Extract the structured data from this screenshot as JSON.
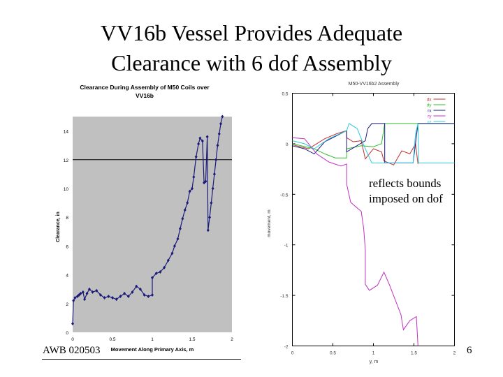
{
  "slide": {
    "title_line1": "VV16b Vessel Provides Adequate",
    "title_line2": "Clearance with 6 dof Assembly",
    "footer": "AWB 020503",
    "page_number": "6",
    "annotation_line1": "reflects bounds",
    "annotation_line2": "imposed on dof"
  },
  "chart_data": [
    {
      "type": "line",
      "title": "Clearance During Assembly of M50 Coils over VV16b",
      "title_line1": "Clearance During Assembly of M50 Coils over",
      "title_line2": "VV16b",
      "xlabel": "Movement Along Primary Axis, m",
      "ylabel": "Clearance, in",
      "xlim": [
        0,
        2
      ],
      "ylim": [
        0,
        15
      ],
      "xticks": [
        "0",
        "0.5",
        "1",
        "1.5",
        "2"
      ],
      "yticks": [
        "0",
        "2",
        "4",
        "6",
        "8",
        "10",
        "12",
        "14"
      ],
      "plot_background": "#c0c0c0",
      "reference_line_y": 12,
      "series": [
        {
          "color": "#1a1a7a",
          "marker": "diamond",
          "points": [
            [
              0,
              0.6
            ],
            [
              0.01,
              2.2
            ],
            [
              0.03,
              2.4
            ],
            [
              0.06,
              2.5
            ],
            [
              0.08,
              2.6
            ],
            [
              0.1,
              2.7
            ],
            [
              0.13,
              2.8
            ],
            [
              0.15,
              2.3
            ],
            [
              0.18,
              2.7
            ],
            [
              0.21,
              3.0
            ],
            [
              0.25,
              2.8
            ],
            [
              0.3,
              2.9
            ],
            [
              0.35,
              2.6
            ],
            [
              0.4,
              2.4
            ],
            [
              0.45,
              2.5
            ],
            [
              0.5,
              2.4
            ],
            [
              0.55,
              2.3
            ],
            [
              0.6,
              2.5
            ],
            [
              0.65,
              2.7
            ],
            [
              0.7,
              2.5
            ],
            [
              0.75,
              2.8
            ],
            [
              0.8,
              3.2
            ],
            [
              0.85,
              3.0
            ],
            [
              0.9,
              2.6
            ],
            [
              0.95,
              2.5
            ],
            [
              1.0,
              2.6
            ],
            [
              1.0,
              3.8
            ],
            [
              1.05,
              4.1
            ],
            [
              1.1,
              4.2
            ],
            [
              1.15,
              4.5
            ],
            [
              1.2,
              5.0
            ],
            [
              1.25,
              5.5
            ],
            [
              1.28,
              6.0
            ],
            [
              1.32,
              6.5
            ],
            [
              1.35,
              7.2
            ],
            [
              1.38,
              7.9
            ],
            [
              1.41,
              8.5
            ],
            [
              1.44,
              9.0
            ],
            [
              1.47,
              9.8
            ],
            [
              1.5,
              10.0
            ],
            [
              1.52,
              10.8
            ],
            [
              1.55,
              12.2
            ],
            [
              1.58,
              13.1
            ],
            [
              1.6,
              13.5
            ],
            [
              1.63,
              13.3
            ],
            [
              1.65,
              10.4
            ],
            [
              1.67,
              10.5
            ],
            [
              1.69,
              13.6
            ],
            [
              1.7,
              7.1
            ],
            [
              1.72,
              8.0
            ],
            [
              1.74,
              9.0
            ],
            [
              1.76,
              10.0
            ],
            [
              1.78,
              11.0
            ],
            [
              1.8,
              12.0
            ],
            [
              1.82,
              13.0
            ],
            [
              1.84,
              13.8
            ],
            [
              1.86,
              14.5
            ],
            [
              1.88,
              15.0
            ]
          ]
        }
      ]
    },
    {
      "type": "line",
      "title": "M50-VV16b2 Assembly",
      "xlabel": "y, m",
      "ylabel": "movement, m",
      "xlim": [
        0,
        2
      ],
      "ylim": [
        -2,
        0.5
      ],
      "xticks": [
        "0",
        "0.5",
        "1",
        "1.5",
        "2"
      ],
      "yticks": [
        "0.5",
        "0",
        "-0.5",
        "-1",
        "-1.5",
        "-2"
      ],
      "legend_position": "top-right",
      "series": [
        {
          "name": "dx",
          "color": "#c03030",
          "points": [
            [
              0,
              -0.01
            ],
            [
              0.2,
              -0.05
            ],
            [
              0.4,
              0.05
            ],
            [
              0.55,
              0.1
            ],
            [
              0.67,
              0.13
            ],
            [
              0.67,
              0.06
            ],
            [
              0.75,
              0.02
            ],
            [
              0.85,
              0.03
            ],
            [
              0.9,
              -0.15
            ],
            [
              1.0,
              -0.05
            ],
            [
              1.1,
              -0.08
            ],
            [
              1.13,
              -0.17
            ],
            [
              1.25,
              -0.21
            ],
            [
              1.35,
              -0.07
            ],
            [
              1.45,
              -0.1
            ],
            [
              1.52,
              0.0
            ],
            [
              1.55,
              -0.2
            ]
          ]
        },
        {
          "name": "dy",
          "color": "#30c030",
          "points": [
            [
              0,
              0.0
            ],
            [
              0.27,
              -0.05
            ],
            [
              0.4,
              -0.1
            ],
            [
              0.53,
              -0.14
            ],
            [
              0.67,
              -0.14
            ],
            [
              0.67,
              -0.05
            ],
            [
              0.85,
              -0.02
            ],
            [
              1.0,
              -0.03
            ],
            [
              1.1,
              0.0
            ],
            [
              1.14,
              0.2
            ],
            [
              2.0,
              0.2
            ]
          ]
        },
        {
          "name": "rx",
          "color": "#1a1a80",
          "points": [
            [
              0,
              -0.02
            ],
            [
              0.15,
              -0.05
            ],
            [
              0.27,
              -0.1
            ],
            [
              0.4,
              0.02
            ],
            [
              0.67,
              0.13
            ],
            [
              0.67,
              -0.08
            ],
            [
              0.9,
              0.03
            ],
            [
              0.93,
              0.15
            ],
            [
              0.98,
              0.2
            ],
            [
              1.14,
              0.2
            ],
            [
              1.14,
              -0.19
            ],
            [
              1.49,
              -0.19
            ],
            [
              1.55,
              0.2
            ],
            [
              2.0,
              0.2
            ]
          ]
        },
        {
          "name": "ry",
          "color": "#c030c0",
          "points": [
            [
              0,
              0.06
            ],
            [
              0.15,
              0.05
            ],
            [
              0.3,
              -0.1
            ],
            [
              0.45,
              -0.18
            ],
            [
              0.6,
              -0.22
            ],
            [
              0.67,
              -0.2
            ],
            [
              0.67,
              -0.4
            ],
            [
              0.72,
              -0.58
            ],
            [
              0.85,
              -0.67
            ],
            [
              0.88,
              -0.84
            ],
            [
              0.9,
              -1.05
            ],
            [
              0.9,
              -1.39
            ],
            [
              0.95,
              -1.45
            ],
            [
              1.05,
              -1.4
            ],
            [
              1.13,
              -1.27
            ],
            [
              1.2,
              -1.4
            ],
            [
              1.34,
              -1.69
            ],
            [
              1.37,
              -1.84
            ],
            [
              1.45,
              -1.75
            ],
            [
              1.53,
              -1.71
            ],
            [
              1.55,
              -2.0
            ]
          ]
        },
        {
          "name": "rz",
          "color": "#30c8d8",
          "points": [
            [
              0,
              0.03
            ],
            [
              0.15,
              0.0
            ],
            [
              0.27,
              -0.05
            ],
            [
              0.45,
              0.05
            ],
            [
              0.67,
              0.13
            ],
            [
              0.7,
              0.2
            ],
            [
              0.8,
              0.15
            ],
            [
              0.9,
              -0.05
            ],
            [
              0.98,
              -0.19
            ],
            [
              1.49,
              -0.19
            ],
            [
              1.52,
              0.1
            ],
            [
              1.55,
              0.2
            ],
            [
              1.56,
              -0.19
            ],
            [
              2.0,
              -0.19
            ]
          ]
        }
      ]
    }
  ]
}
